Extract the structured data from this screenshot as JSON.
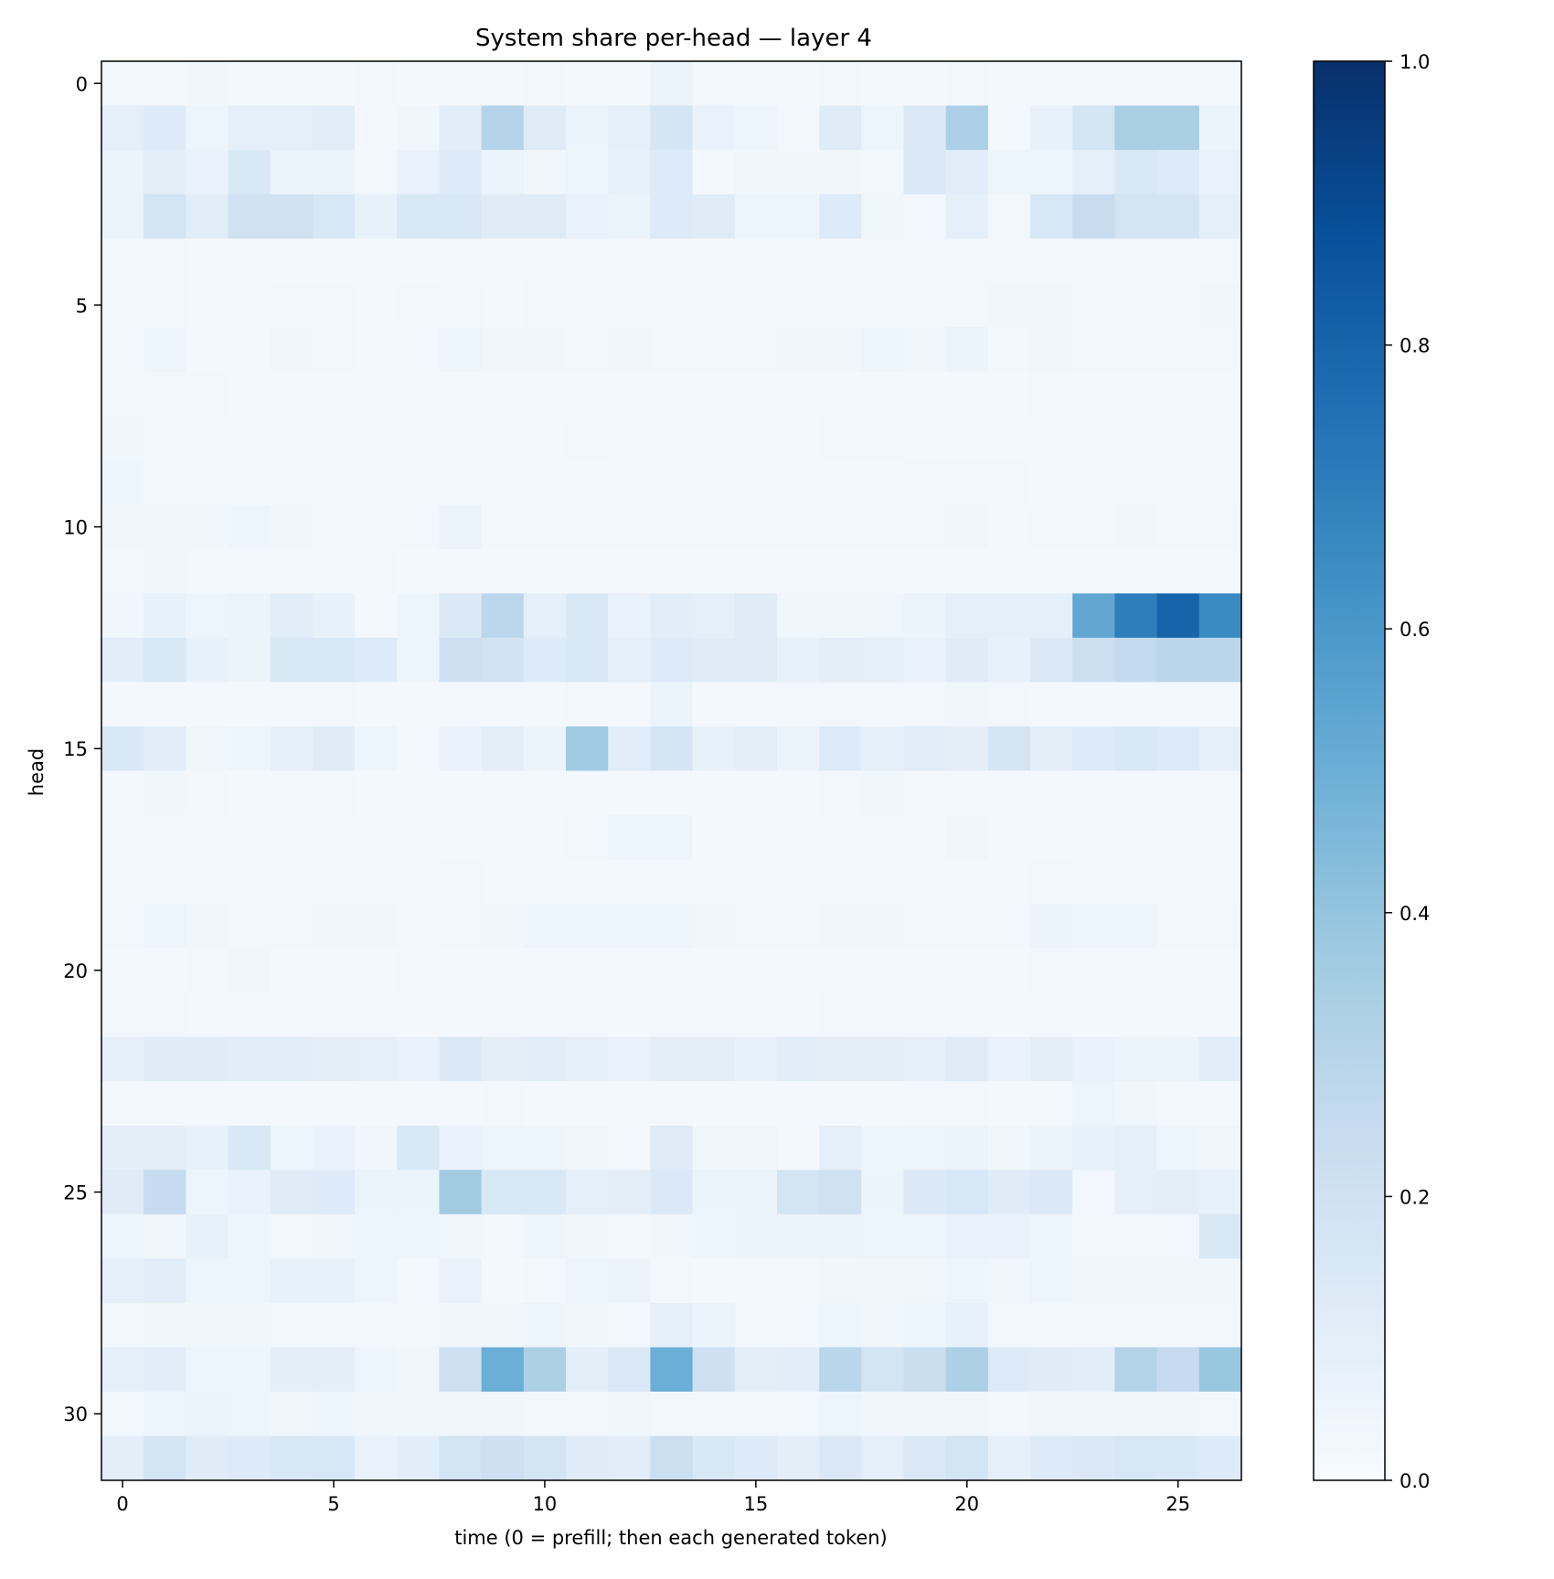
{
  "chart_data": {
    "type": "heatmap",
    "title": "System share per-head — layer 4",
    "xlabel": "time (0 = prefill; then each generated token)",
    "ylabel": "head",
    "x_ticks": [
      "0",
      "5",
      "10",
      "15",
      "20",
      "25"
    ],
    "y_ticks": [
      "0",
      "5",
      "10",
      "15",
      "20",
      "25",
      "30"
    ],
    "colorbar_ticks": [
      "0.0",
      "0.2",
      "0.4",
      "0.6",
      "0.8",
      "1.0"
    ],
    "colormap": "Blues",
    "vmin": 0,
    "vmax": 1,
    "n_heads": 32,
    "n_times": 27,
    "values": [
      [
        0.03,
        0.03,
        0.04,
        0.02,
        0.02,
        0.02,
        0.03,
        0.02,
        0.02,
        0.02,
        0.03,
        0.02,
        0.02,
        0.06,
        0.03,
        0.02,
        0.02,
        0.03,
        0.02,
        0.02,
        0.03,
        0.02,
        0.02,
        0.02,
        0.02,
        0.02,
        0.02
      ],
      [
        0.09,
        0.13,
        0.05,
        0.09,
        0.09,
        0.11,
        0.02,
        0.04,
        0.11,
        0.3,
        0.12,
        0.06,
        0.09,
        0.17,
        0.07,
        0.05,
        0.03,
        0.12,
        0.05,
        0.14,
        0.33,
        0.02,
        0.08,
        0.18,
        0.34,
        0.34,
        0.06
      ],
      [
        0.06,
        0.1,
        0.07,
        0.15,
        0.06,
        0.06,
        0.03,
        0.07,
        0.13,
        0.06,
        0.04,
        0.05,
        0.08,
        0.13,
        0.02,
        0.04,
        0.04,
        0.04,
        0.03,
        0.14,
        0.11,
        0.05,
        0.05,
        0.09,
        0.15,
        0.13,
        0.07
      ],
      [
        0.06,
        0.18,
        0.11,
        0.2,
        0.2,
        0.16,
        0.08,
        0.15,
        0.15,
        0.12,
        0.12,
        0.07,
        0.06,
        0.13,
        0.12,
        0.05,
        0.05,
        0.13,
        0.04,
        0.03,
        0.09,
        0.03,
        0.16,
        0.24,
        0.18,
        0.18,
        0.09
      ],
      [
        0.02,
        0.03,
        0.02,
        0.02,
        0.02,
        0.02,
        0.02,
        0.02,
        0.03,
        0.03,
        0.03,
        0.03,
        0.03,
        0.03,
        0.03,
        0.03,
        0.03,
        0.03,
        0.03,
        0.03,
        0.03,
        0.03,
        0.03,
        0.03,
        0.03,
        0.03,
        0.03
      ],
      [
        0.02,
        0.03,
        0.02,
        0.02,
        0.03,
        0.03,
        0.02,
        0.03,
        0.03,
        0.02,
        0.03,
        0.03,
        0.03,
        0.03,
        0.03,
        0.03,
        0.03,
        0.03,
        0.03,
        0.03,
        0.03,
        0.04,
        0.04,
        0.03,
        0.03,
        0.03,
        0.04
      ],
      [
        0.02,
        0.05,
        0.02,
        0.02,
        0.04,
        0.03,
        0.02,
        0.02,
        0.05,
        0.04,
        0.04,
        0.03,
        0.04,
        0.03,
        0.03,
        0.03,
        0.04,
        0.04,
        0.05,
        0.04,
        0.06,
        0.03,
        0.04,
        0.03,
        0.03,
        0.03,
        0.03
      ],
      [
        0.02,
        0.03,
        0.03,
        0.02,
        0.02,
        0.02,
        0.02,
        0.02,
        0.02,
        0.02,
        0.02,
        0.02,
        0.02,
        0.02,
        0.02,
        0.02,
        0.02,
        0.02,
        0.02,
        0.02,
        0.02,
        0.02,
        0.03,
        0.02,
        0.02,
        0.02,
        0.02
      ],
      [
        0.04,
        0.02,
        0.02,
        0.02,
        0.02,
        0.02,
        0.02,
        0.02,
        0.02,
        0.02,
        0.02,
        0.03,
        0.02,
        0.02,
        0.02,
        0.02,
        0.02,
        0.03,
        0.03,
        0.02,
        0.02,
        0.02,
        0.02,
        0.02,
        0.02,
        0.02,
        0.02
      ],
      [
        0.05,
        0.02,
        0.02,
        0.02,
        0.02,
        0.02,
        0.02,
        0.02,
        0.02,
        0.02,
        0.02,
        0.02,
        0.02,
        0.02,
        0.02,
        0.02,
        0.02,
        0.02,
        0.02,
        0.03,
        0.03,
        0.03,
        0.02,
        0.02,
        0.02,
        0.02,
        0.02
      ],
      [
        0.04,
        0.04,
        0.04,
        0.05,
        0.04,
        0.03,
        0.03,
        0.03,
        0.06,
        0.03,
        0.03,
        0.03,
        0.03,
        0.03,
        0.03,
        0.03,
        0.03,
        0.03,
        0.03,
        0.03,
        0.04,
        0.02,
        0.03,
        0.03,
        0.04,
        0.03,
        0.03
      ],
      [
        0.03,
        0.04,
        0.03,
        0.03,
        0.03,
        0.03,
        0.03,
        0.02,
        0.02,
        0.02,
        0.02,
        0.02,
        0.02,
        0.02,
        0.02,
        0.02,
        0.02,
        0.02,
        0.02,
        0.02,
        0.02,
        0.02,
        0.02,
        0.02,
        0.02,
        0.02,
        0.02
      ],
      [
        0.04,
        0.08,
        0.05,
        0.06,
        0.11,
        0.08,
        0.02,
        0.05,
        0.14,
        0.28,
        0.09,
        0.15,
        0.07,
        0.11,
        0.09,
        0.12,
        0.04,
        0.04,
        0.04,
        0.06,
        0.09,
        0.09,
        0.09,
        0.53,
        0.7,
        0.8,
        0.65
      ],
      [
        0.11,
        0.15,
        0.08,
        0.06,
        0.15,
        0.15,
        0.13,
        0.05,
        0.21,
        0.19,
        0.13,
        0.15,
        0.09,
        0.13,
        0.12,
        0.12,
        0.08,
        0.1,
        0.09,
        0.07,
        0.12,
        0.08,
        0.14,
        0.22,
        0.26,
        0.29,
        0.29
      ],
      [
        0.02,
        0.02,
        0.02,
        0.02,
        0.02,
        0.03,
        0.02,
        0.02,
        0.02,
        0.02,
        0.02,
        0.03,
        0.02,
        0.06,
        0.02,
        0.02,
        0.03,
        0.03,
        0.03,
        0.03,
        0.04,
        0.03,
        0.02,
        0.02,
        0.02,
        0.02,
        0.02
      ],
      [
        0.15,
        0.11,
        0.04,
        0.05,
        0.09,
        0.12,
        0.05,
        0.02,
        0.07,
        0.1,
        0.06,
        0.37,
        0.11,
        0.17,
        0.08,
        0.1,
        0.06,
        0.13,
        0.09,
        0.11,
        0.1,
        0.17,
        0.1,
        0.13,
        0.15,
        0.13,
        0.09
      ],
      [
        0.02,
        0.04,
        0.03,
        0.02,
        0.02,
        0.03,
        0.02,
        0.02,
        0.02,
        0.02,
        0.02,
        0.02,
        0.02,
        0.02,
        0.02,
        0.02,
        0.02,
        0.03,
        0.04,
        0.02,
        0.02,
        0.02,
        0.02,
        0.02,
        0.02,
        0.02,
        0.02
      ],
      [
        0.02,
        0.02,
        0.02,
        0.02,
        0.02,
        0.02,
        0.02,
        0.02,
        0.02,
        0.02,
        0.02,
        0.03,
        0.05,
        0.05,
        0.02,
        0.02,
        0.02,
        0.02,
        0.02,
        0.02,
        0.04,
        0.02,
        0.02,
        0.02,
        0.02,
        0.02,
        0.02
      ],
      [
        0.02,
        0.02,
        0.02,
        0.02,
        0.02,
        0.02,
        0.02,
        0.02,
        0.03,
        0.02,
        0.02,
        0.02,
        0.02,
        0.02,
        0.02,
        0.02,
        0.02,
        0.02,
        0.02,
        0.02,
        0.02,
        0.02,
        0.03,
        0.02,
        0.02,
        0.02,
        0.02
      ],
      [
        0.03,
        0.05,
        0.04,
        0.03,
        0.03,
        0.04,
        0.04,
        0.03,
        0.03,
        0.04,
        0.05,
        0.05,
        0.05,
        0.05,
        0.04,
        0.03,
        0.03,
        0.04,
        0.04,
        0.03,
        0.03,
        0.03,
        0.06,
        0.05,
        0.05,
        0.03,
        0.03
      ],
      [
        0.02,
        0.02,
        0.03,
        0.04,
        0.02,
        0.02,
        0.02,
        0.03,
        0.02,
        0.02,
        0.02,
        0.02,
        0.02,
        0.02,
        0.02,
        0.02,
        0.02,
        0.02,
        0.02,
        0.02,
        0.02,
        0.02,
        0.03,
        0.02,
        0.02,
        0.02,
        0.02
      ],
      [
        0.03,
        0.03,
        0.02,
        0.02,
        0.02,
        0.02,
        0.02,
        0.02,
        0.02,
        0.02,
        0.02,
        0.02,
        0.02,
        0.02,
        0.02,
        0.02,
        0.02,
        0.03,
        0.03,
        0.02,
        0.02,
        0.02,
        0.02,
        0.02,
        0.02,
        0.02,
        0.02
      ],
      [
        0.09,
        0.12,
        0.12,
        0.11,
        0.11,
        0.1,
        0.09,
        0.07,
        0.14,
        0.1,
        0.11,
        0.09,
        0.07,
        0.1,
        0.1,
        0.08,
        0.11,
        0.1,
        0.1,
        0.09,
        0.12,
        0.07,
        0.1,
        0.07,
        0.06,
        0.06,
        0.11
      ],
      [
        0.02,
        0.02,
        0.02,
        0.02,
        0.02,
        0.02,
        0.02,
        0.02,
        0.02,
        0.03,
        0.02,
        0.02,
        0.02,
        0.02,
        0.02,
        0.02,
        0.02,
        0.02,
        0.02,
        0.03,
        0.03,
        0.02,
        0.02,
        0.05,
        0.04,
        0.03,
        0.02
      ],
      [
        0.1,
        0.1,
        0.08,
        0.15,
        0.05,
        0.07,
        0.04,
        0.15,
        0.07,
        0.05,
        0.05,
        0.04,
        0.03,
        0.12,
        0.04,
        0.04,
        0.02,
        0.09,
        0.05,
        0.05,
        0.06,
        0.04,
        0.06,
        0.08,
        0.09,
        0.05,
        0.04
      ],
      [
        0.12,
        0.25,
        0.05,
        0.07,
        0.12,
        0.13,
        0.06,
        0.06,
        0.36,
        0.15,
        0.15,
        0.09,
        0.1,
        0.14,
        0.06,
        0.06,
        0.18,
        0.2,
        0.06,
        0.14,
        0.16,
        0.12,
        0.14,
        0.03,
        0.09,
        0.1,
        0.08
      ],
      [
        0.05,
        0.04,
        0.08,
        0.05,
        0.03,
        0.04,
        0.05,
        0.05,
        0.04,
        0.03,
        0.05,
        0.04,
        0.03,
        0.04,
        0.05,
        0.06,
        0.06,
        0.06,
        0.05,
        0.05,
        0.07,
        0.07,
        0.05,
        0.03,
        0.03,
        0.03,
        0.15
      ],
      [
        0.09,
        0.11,
        0.05,
        0.05,
        0.08,
        0.08,
        0.05,
        0.02,
        0.07,
        0.02,
        0.03,
        0.05,
        0.06,
        0.03,
        0.02,
        0.03,
        0.03,
        0.04,
        0.04,
        0.04,
        0.05,
        0.04,
        0.05,
        0.04,
        0.04,
        0.04,
        0.04
      ],
      [
        0.03,
        0.04,
        0.04,
        0.04,
        0.03,
        0.03,
        0.03,
        0.03,
        0.04,
        0.04,
        0.05,
        0.04,
        0.03,
        0.09,
        0.06,
        0.03,
        0.03,
        0.05,
        0.04,
        0.05,
        0.08,
        0.03,
        0.03,
        0.03,
        0.03,
        0.03,
        0.03
      ],
      [
        0.09,
        0.11,
        0.05,
        0.05,
        0.1,
        0.1,
        0.05,
        0.04,
        0.21,
        0.5,
        0.33,
        0.1,
        0.14,
        0.5,
        0.21,
        0.1,
        0.11,
        0.29,
        0.18,
        0.23,
        0.33,
        0.13,
        0.12,
        0.11,
        0.31,
        0.25,
        0.39
      ],
      [
        0.03,
        0.05,
        0.06,
        0.05,
        0.04,
        0.05,
        0.04,
        0.04,
        0.04,
        0.04,
        0.03,
        0.03,
        0.04,
        0.03,
        0.03,
        0.03,
        0.03,
        0.05,
        0.04,
        0.04,
        0.04,
        0.03,
        0.04,
        0.04,
        0.04,
        0.04,
        0.03
      ],
      [
        0.1,
        0.18,
        0.12,
        0.13,
        0.15,
        0.16,
        0.07,
        0.11,
        0.18,
        0.21,
        0.18,
        0.12,
        0.11,
        0.22,
        0.15,
        0.13,
        0.1,
        0.14,
        0.09,
        0.14,
        0.18,
        0.09,
        0.13,
        0.14,
        0.16,
        0.15,
        0.13
      ]
    ]
  }
}
